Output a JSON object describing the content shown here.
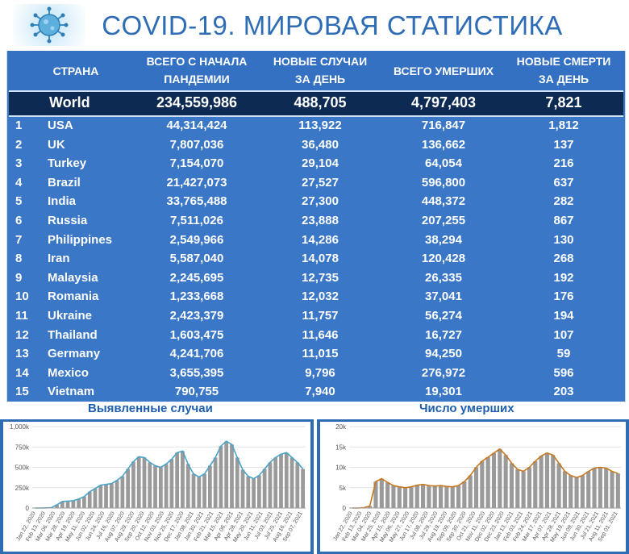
{
  "header": {
    "title": "COVID-19. МИРОВАЯ СТАТИСТИКА",
    "logo_icon": "virus-icon"
  },
  "table": {
    "columns": {
      "country": "СТРАНА",
      "total_cases_l1": "ВСЕГО С НАЧАЛА",
      "total_cases_l2": "ПАНДЕМИИ",
      "new_cases_l1": "НОВЫЕ СЛУЧАИ",
      "new_cases_l2": "ЗА ДЕНЬ",
      "total_deaths": "ВСЕГО УМЕРШИХ",
      "new_deaths_l1": "НОВЫЕ СМЕРТИ",
      "new_deaths_l2": "ЗА ДЕНЬ"
    },
    "world": {
      "name": "World",
      "total_cases": "234,559,986",
      "new_cases": "488,705",
      "total_deaths": "4,797,403",
      "new_deaths": "7,821"
    },
    "rows": [
      {
        "rank": "1",
        "name": "USA",
        "total_cases": "44,314,424",
        "new_cases": "113,922",
        "total_deaths": "716,847",
        "new_deaths": "1,812"
      },
      {
        "rank": "2",
        "name": "UK",
        "total_cases": "7,807,036",
        "new_cases": "36,480",
        "total_deaths": "136,662",
        "new_deaths": "137"
      },
      {
        "rank": "3",
        "name": "Turkey",
        "total_cases": "7,154,070",
        "new_cases": "29,104",
        "total_deaths": "64,054",
        "new_deaths": "216"
      },
      {
        "rank": "4",
        "name": "Brazil",
        "total_cases": "21,427,073",
        "new_cases": "27,527",
        "total_deaths": "596,800",
        "new_deaths": "637"
      },
      {
        "rank": "5",
        "name": "India",
        "total_cases": "33,765,488",
        "new_cases": "27,300",
        "total_deaths": "448,372",
        "new_deaths": "282"
      },
      {
        "rank": "6",
        "name": "Russia",
        "total_cases": "7,511,026",
        "new_cases": "23,888",
        "total_deaths": "207,255",
        "new_deaths": "867"
      },
      {
        "rank": "7",
        "name": "Philippines",
        "total_cases": "2,549,966",
        "new_cases": "14,286",
        "total_deaths": "38,294",
        "new_deaths": "130"
      },
      {
        "rank": "8",
        "name": "Iran",
        "total_cases": "5,587,040",
        "new_cases": "14,078",
        "total_deaths": "120,428",
        "new_deaths": "268"
      },
      {
        "rank": "9",
        "name": "Malaysia",
        "total_cases": "2,245,695",
        "new_cases": "12,735",
        "total_deaths": "26,335",
        "new_deaths": "192"
      },
      {
        "rank": "10",
        "name": "Romania",
        "total_cases": "1,233,668",
        "new_cases": "12,032",
        "total_deaths": "37,041",
        "new_deaths": "176"
      },
      {
        "rank": "11",
        "name": "Ukraine",
        "total_cases": "2,423,379",
        "new_cases": "11,757",
        "total_deaths": "56,274",
        "new_deaths": "194"
      },
      {
        "rank": "12",
        "name": "Thailand",
        "total_cases": "1,603,475",
        "new_cases": "11,646",
        "total_deaths": "16,727",
        "new_deaths": "107"
      },
      {
        "rank": "13",
        "name": "Germany",
        "total_cases": "4,241,706",
        "new_cases": "11,015",
        "total_deaths": "94,250",
        "new_deaths": "59"
      },
      {
        "rank": "14",
        "name": "Mexico",
        "total_cases": "3,655,395",
        "new_cases": "9,796",
        "total_deaths": "276,972",
        "new_deaths": "596"
      },
      {
        "rank": "15",
        "name": "Vietnam",
        "total_cases": "790,755",
        "new_cases": "7,940",
        "total_deaths": "19,301",
        "new_deaths": "203"
      }
    ]
  },
  "colors": {
    "title": "#2e6cb5",
    "table_bg": "#3a77c6",
    "world_bg": "#0d2a52",
    "bar": "#9a9a9a",
    "cases_line": "#4aa3c9",
    "deaths_line": "#c8781e"
  },
  "chart_data": [
    {
      "type": "bar",
      "title": "Выявленные случаи",
      "ylim": [
        0,
        1000000
      ],
      "y_ticks": [
        "0",
        "250k",
        "500k",
        "750k",
        "1,000k"
      ],
      "y_tick_values": [
        0,
        250000,
        500000,
        750000,
        1000000
      ],
      "x_ticks": [
        "Jan 22, 2020",
        "Feb 13, 2020",
        "Mar 06, 2020",
        "Mar 28, 2020",
        "Apr 19, 2020",
        "May 11, 2020",
        "Jun 02, 2020",
        "Jun 24, 2020",
        "Jul 16, 2020",
        "Aug 07, 2020",
        "Aug 29, 2020",
        "Sep 20, 2020",
        "Oct 12, 2020",
        "Nov 03, 2020",
        "Nov 25, 2020",
        "Dec 17, 2020",
        "Jan 08, 2021",
        "Jan 30, 2021",
        "Feb 21, 2021",
        "Mar 15, 2021",
        "Apr 06, 2021",
        "Apr 28, 2021",
        "May 20, 2021",
        "Jun 11, 2021",
        "Jul 03, 2021",
        "Jul 25, 2021",
        "Aug 16, 2021",
        "Sep 07, 2021"
      ],
      "series": [
        {
          "kind": "bar",
          "values": [
            0,
            0,
            2000,
            5000,
            40000,
            80000,
            85000,
            90000,
            110000,
            140000,
            200000,
            240000,
            280000,
            290000,
            300000,
            340000,
            390000,
            480000,
            570000,
            630000,
            620000,
            560000,
            520000,
            500000,
            540000,
            600000,
            680000,
            700000,
            540000,
            420000,
            380000,
            420000,
            520000,
            620000,
            760000,
            820000,
            780000,
            620000,
            470000,
            390000,
            360000,
            400000,
            480000,
            560000,
            620000,
            660000,
            680000,
            620000,
            560000,
            480000
          ]
        },
        {
          "kind": "line",
          "values": [
            0,
            0,
            2000,
            5000,
            40000,
            80000,
            85000,
            90000,
            110000,
            140000,
            200000,
            240000,
            280000,
            290000,
            300000,
            340000,
            390000,
            480000,
            570000,
            630000,
            620000,
            560000,
            520000,
            500000,
            540000,
            600000,
            680000,
            700000,
            540000,
            420000,
            380000,
            420000,
            520000,
            620000,
            760000,
            820000,
            780000,
            620000,
            470000,
            390000,
            360000,
            400000,
            480000,
            560000,
            620000,
            660000,
            680000,
            620000,
            560000,
            480000
          ]
        }
      ]
    },
    {
      "type": "bar",
      "title": "Число умерших",
      "ylim": [
        0,
        20000
      ],
      "y_ticks": [
        "0",
        "5k",
        "10k",
        "15k",
        "20k"
      ],
      "y_tick_values": [
        0,
        5000,
        10000,
        15000,
        20000
      ],
      "x_ticks": [
        "Jan 22, 2020",
        "Feb 13, 2020",
        "Mar 04, 2020",
        "Mar 25, 2020",
        "Apr 15, 2020",
        "May 06, 2020",
        "May 27, 2020",
        "Jun 17, 2020",
        "Jul 08, 2020",
        "Jul 29, 2020",
        "Aug 19, 2020",
        "Sep 09, 2020",
        "Sep 30, 2020",
        "Oct 21, 2020",
        "Nov 11, 2020",
        "Dec 02, 2020",
        "Dec 23, 2020",
        "Jan 13, 2021",
        "Feb 03, 2021",
        "Feb 24, 2021",
        "Mar 17, 2021",
        "Apr 07, 2021",
        "Apr 28, 2021",
        "May 19, 2021",
        "Jun 09, 2021",
        "Jun 30, 2021",
        "Jul 21, 2021",
        "Aug 11, 2021",
        "Sep 01, 2021"
      ],
      "series": [
        {
          "kind": "bar",
          "values": [
            0,
            0,
            100,
            500,
            6500,
            7200,
            6300,
            5500,
            5200,
            5000,
            5200,
            5600,
            5800,
            5500,
            5400,
            5500,
            5300,
            5200,
            5500,
            6500,
            8000,
            10000,
            11500,
            12500,
            13500,
            14500,
            13000,
            11000,
            9500,
            9000,
            10000,
            11500,
            12800,
            13500,
            13000,
            11000,
            9000,
            8000,
            7500,
            8000,
            9000,
            9800,
            10000,
            9800,
            9000,
            8500
          ]
        },
        {
          "kind": "line",
          "values": [
            0,
            0,
            100,
            500,
            6500,
            7200,
            6300,
            5500,
            5200,
            5000,
            5200,
            5600,
            5800,
            5500,
            5400,
            5500,
            5300,
            5200,
            5500,
            6500,
            8000,
            10000,
            11500,
            12500,
            13500,
            14500,
            13000,
            11000,
            9500,
            9000,
            10000,
            11500,
            12800,
            13500,
            13000,
            11000,
            9000,
            8000,
            7500,
            8000,
            9000,
            9800,
            10000,
            9800,
            9000,
            8500
          ]
        }
      ]
    }
  ]
}
